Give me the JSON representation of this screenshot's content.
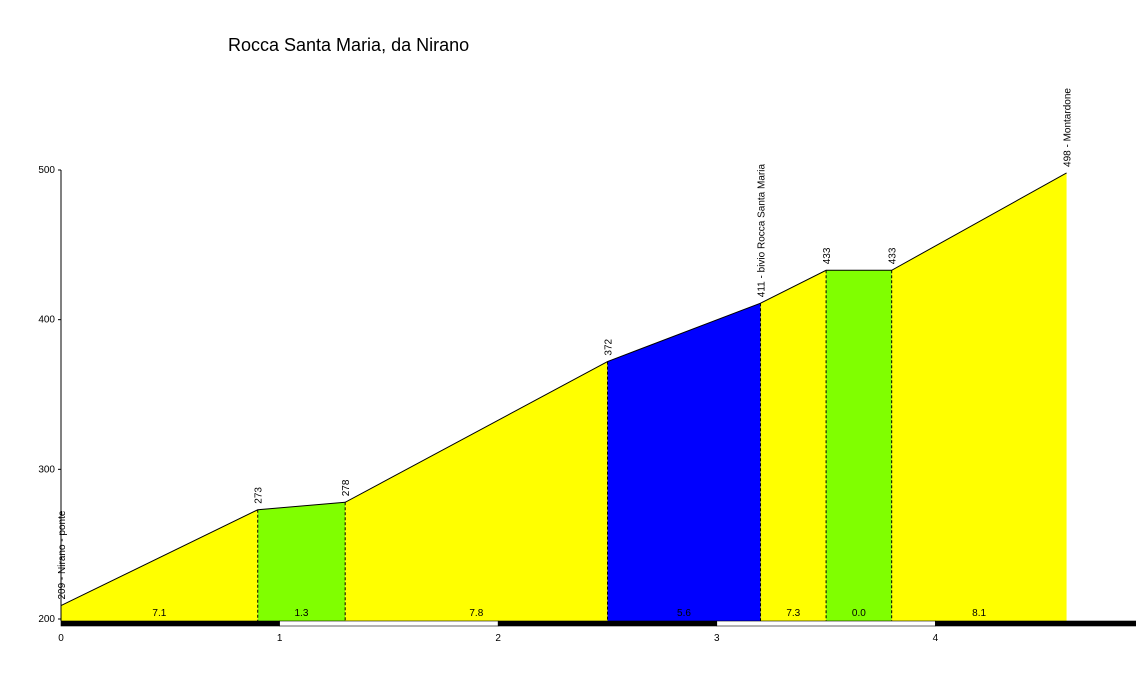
{
  "chart_data": {
    "type": "area",
    "title": "Rocca Santa Maria, da Nirano",
    "xlim": [
      0,
      4.9
    ],
    "ylim": [
      200,
      500
    ],
    "x_ticks": [
      0,
      1,
      2,
      3,
      4
    ],
    "y_ticks": [
      200,
      300,
      400,
      500
    ],
    "points": [
      {
        "x": 0.0,
        "y": 209,
        "label": "209 - Nirano - ponte"
      },
      {
        "x": 0.9,
        "y": 273,
        "label": "273"
      },
      {
        "x": 1.3,
        "y": 278,
        "label": "278"
      },
      {
        "x": 2.5,
        "y": 372,
        "label": "372"
      },
      {
        "x": 3.2,
        "y": 411,
        "label": "411 - bivio Rocca Santa Maria"
      },
      {
        "x": 3.5,
        "y": 433,
        "label": "433"
      },
      {
        "x": 3.8,
        "y": 433,
        "label": "433"
      },
      {
        "x": 4.6,
        "y": 498,
        "label": "498 - Montardone"
      }
    ],
    "segments": [
      {
        "gradient": "7.1",
        "color": "#ffff00"
      },
      {
        "gradient": "1.3",
        "color": "#80ff00"
      },
      {
        "gradient": "7.8",
        "color": "#ffff00"
      },
      {
        "gradient": "5.6",
        "color": "#0000ff"
      },
      {
        "gradient": "7.3",
        "color": "#ffff00"
      },
      {
        "gradient": "0.0",
        "color": "#80ff00"
      },
      {
        "gradient": "8.1",
        "color": "#ffff00"
      }
    ]
  }
}
